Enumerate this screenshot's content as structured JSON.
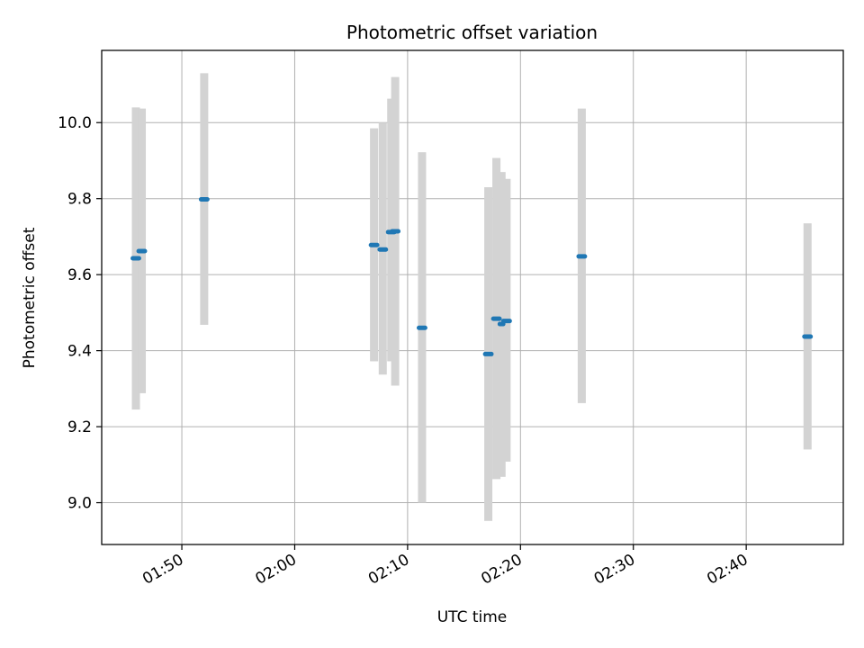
{
  "chart_data": {
    "type": "scatter",
    "title": "Photometric offset variation",
    "xlabel": "UTC time",
    "ylabel": "Photometric offset",
    "x_tick_labels": [
      "01:50",
      "02:00",
      "02:10",
      "02:20",
      "02:30",
      "02:40"
    ],
    "x_tick_minutes": [
      110,
      120,
      130,
      140,
      150,
      160
    ],
    "y_ticks": [
      9.0,
      9.2,
      9.4,
      9.6,
      9.8,
      10.0
    ],
    "y_tick_labels": [
      "9.0",
      "9.2",
      "9.4",
      "9.6",
      "9.8",
      "10.0"
    ],
    "xlim_minutes": [
      102.9,
      168.6
    ],
    "ylim": [
      8.89,
      10.19
    ],
    "grid": true,
    "point_color": "#1f77b4",
    "errorbar_color": "#d3d3d3",
    "points": [
      {
        "t": "01:45:56",
        "minute": 105.93,
        "y": 9.643,
        "yerr_low": 9.245,
        "yerr_high": 10.04,
        "dur": 0.55
      },
      {
        "t": "01:46:27",
        "minute": 106.45,
        "y": 9.662,
        "yerr_low": 9.288,
        "yerr_high": 10.037,
        "dur": 0.55
      },
      {
        "t": "01:51:59",
        "minute": 111.98,
        "y": 9.798,
        "yerr_low": 9.468,
        "yerr_high": 10.13,
        "dur": 0.55
      },
      {
        "t": "02:07:02",
        "minute": 127.03,
        "y": 9.678,
        "yerr_low": 9.372,
        "yerr_high": 9.985,
        "dur": 0.55
      },
      {
        "t": "02:07:48",
        "minute": 127.8,
        "y": 9.666,
        "yerr_low": 9.337,
        "yerr_high": 10.0,
        "dur": 0.55
      },
      {
        "t": "02:08:33",
        "minute": 128.55,
        "y": 9.712,
        "yerr_low": 9.372,
        "yerr_high": 10.063,
        "dur": 0.55
      },
      {
        "t": "02:08:54",
        "minute": 128.9,
        "y": 9.714,
        "yerr_low": 9.308,
        "yerr_high": 10.12,
        "dur": 0.55
      },
      {
        "t": "02:11:17",
        "minute": 131.28,
        "y": 9.46,
        "yerr_low": 9.0,
        "yerr_high": 9.922,
        "dur": 0.55
      },
      {
        "t": "02:17:09",
        "minute": 137.15,
        "y": 9.391,
        "yerr_low": 8.952,
        "yerr_high": 9.83,
        "dur": 0.55
      },
      {
        "t": "02:17:52",
        "minute": 137.87,
        "y": 9.484,
        "yerr_low": 9.062,
        "yerr_high": 9.907,
        "dur": 0.55
      },
      {
        "t": "02:18:19",
        "minute": 138.32,
        "y": 9.47,
        "yerr_low": 9.068,
        "yerr_high": 9.87,
        "dur": 0.3
      },
      {
        "t": "02:18:46",
        "minute": 138.77,
        "y": 9.478,
        "yerr_low": 9.108,
        "yerr_high": 9.852,
        "dur": 0.55
      },
      {
        "t": "02:25:26",
        "minute": 145.43,
        "y": 9.648,
        "yerr_low": 9.262,
        "yerr_high": 10.037,
        "dur": 0.55
      },
      {
        "t": "02:45:26",
        "minute": 165.43,
        "y": 9.437,
        "yerr_low": 9.14,
        "yerr_high": 9.735,
        "dur": 0.55
      }
    ]
  }
}
